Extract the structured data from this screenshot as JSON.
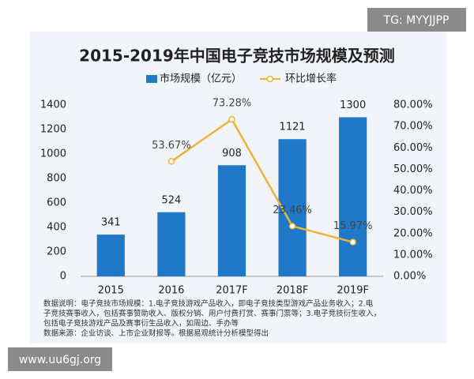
{
  "chart_data": {
    "type": "bar",
    "title": "2015-2019年中国电子竞技市场规模及预测",
    "categories": [
      "2015",
      "2016",
      "2017F",
      "2018F",
      "2019F"
    ],
    "series": [
      {
        "name": "市场规模（亿元）",
        "type": "bar",
        "color": "#1f78c8",
        "values": [
          341,
          524,
          908,
          1121,
          1300
        ]
      },
      {
        "name": "环比增长率",
        "type": "line",
        "axis": "y2",
        "color": "#f0b23a",
        "values": [
          null,
          53.67,
          73.28,
          23.46,
          15.97
        ],
        "value_labels": [
          null,
          "53.67%",
          "73.28%",
          "23.46%",
          "15.97%"
        ]
      }
    ],
    "ylim": [
      0,
      1400
    ],
    "yticks": [
      0,
      200,
      400,
      600,
      800,
      1000,
      1200,
      1400
    ],
    "y2lim": [
      0,
      80
    ],
    "y2ticks": [
      {
        "value": 0,
        "label": "0.00%"
      },
      {
        "value": 10,
        "label": "10.00%"
      },
      {
        "value": 20,
        "label": "20.00%"
      },
      {
        "value": 30,
        "label": "30.00%"
      },
      {
        "value": 40,
        "label": "40.00%"
      },
      {
        "value": 50,
        "label": "50.00%"
      },
      {
        "value": 60,
        "label": "60.00%"
      },
      {
        "value": 70,
        "label": "70.00%"
      },
      {
        "value": 80,
        "label": "80.00%"
      }
    ],
    "notes": [
      "数据说明：电子竞技市场规模：1.电子竞技游戏产品收入，即电子竞技类型游戏产品业务收入；2.电",
      "子竞技赛事收入，包括赛事赞助收入、版权分销、用户付费打赏、赛事门票等；3.电子竞技衍生收入，",
      "包括电子竞技游戏产品及赛事衍生品收入，如周边、手办等",
      "数据来源：企业访谈、上市企业财报等。根据易观统计分析模型得出"
    ]
  },
  "watermark_top": "TG: MYYJJPP",
  "watermark_bottom": "www.uu6gj.org"
}
